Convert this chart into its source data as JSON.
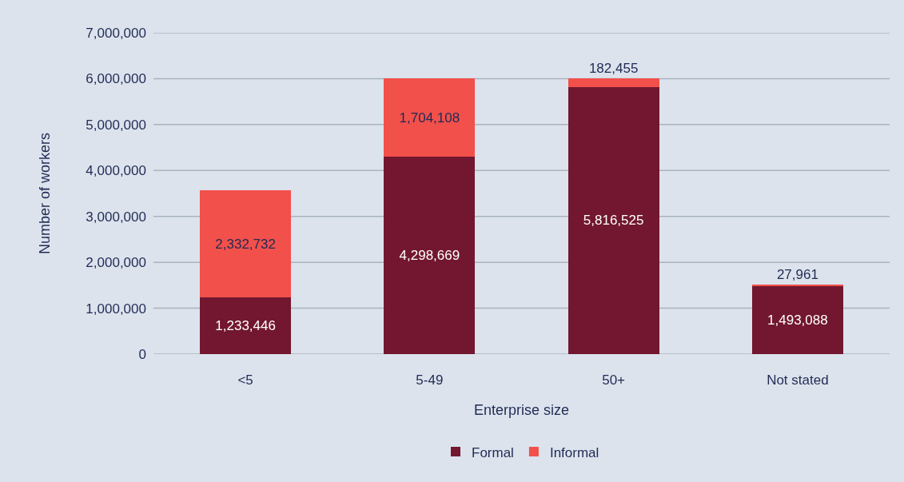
{
  "chart_data": {
    "type": "bar",
    "stacked": true,
    "xlabel": "Enterprise size",
    "ylabel": "Number of workers",
    "categories": [
      "<5",
      "5-49",
      "50+",
      "Not stated"
    ],
    "series": [
      {
        "name": "Formal",
        "color": "#72172f",
        "values": [
          1233446,
          4298669,
          5816525,
          1493088
        ],
        "value_labels": [
          "1,233,446",
          "4,298,669",
          "5,816,525",
          "1,493,088"
        ]
      },
      {
        "name": "Informal",
        "color": "#f2504b",
        "values": [
          2332732,
          1704108,
          182455,
          27961
        ],
        "value_labels": [
          "2,332,732",
          "1,704,108",
          "182,455",
          "27,961"
        ]
      }
    ],
    "ylim": [
      0,
      7000000
    ],
    "yticks": [
      {
        "value": 0,
        "label": "0"
      },
      {
        "value": 1000000,
        "label": "1,000,000"
      },
      {
        "value": 2000000,
        "label": "2,000,000"
      },
      {
        "value": 3000000,
        "label": "3,000,000"
      },
      {
        "value": 4000000,
        "label": "4,000,000"
      },
      {
        "value": 5000000,
        "label": "5,000,000"
      },
      {
        "value": 6000000,
        "label": "6,000,000"
      },
      {
        "value": 7000000,
        "label": "7,000,000"
      }
    ],
    "grid": "y",
    "legend": "bottom"
  }
}
